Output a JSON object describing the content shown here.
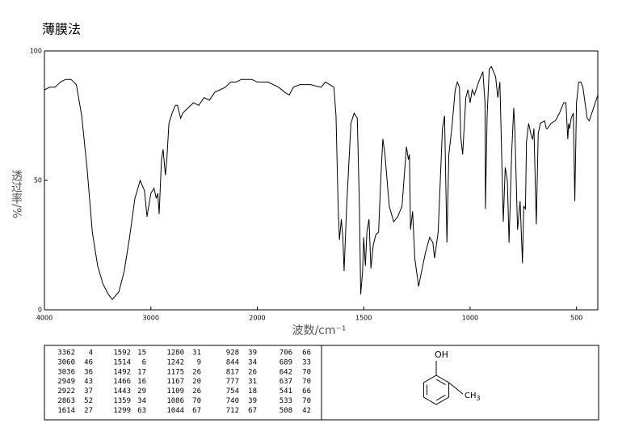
{
  "chart_data": {
    "type": "line",
    "title": "薄膜法",
    "x_label": "波数/cm⁻¹",
    "y_label": "透过率/%",
    "xlim": [
      4000,
      400
    ],
    "ylim": [
      0,
      100
    ],
    "xticks": [
      4000,
      3000,
      2000,
      1500,
      1000,
      500
    ],
    "yticks": [
      0,
      50,
      100
    ],
    "scale_change": {
      "at": 2000,
      "factor": 2
    },
    "color": "#000000",
    "x": [
      4000,
      3950,
      3900,
      3850,
      3800,
      3750,
      3700,
      3650,
      3600,
      3550,
      3500,
      3450,
      3400,
      3362,
      3300,
      3250,
      3200,
      3150,
      3100,
      3060,
      3036,
      3000,
      2970,
      2949,
      2935,
      2922,
      2900,
      2885,
      2863,
      2850,
      2830,
      2800,
      2770,
      2750,
      2720,
      2700,
      2650,
      2600,
      2550,
      2500,
      2450,
      2400,
      2350,
      2300,
      2250,
      2200,
      2150,
      2100,
      2050,
      2000,
      1950,
      1900,
      1870,
      1850,
      1830,
      1800,
      1750,
      1700,
      1680,
      1660,
      1640,
      1630,
      1620,
      1614,
      1605,
      1598,
      1592,
      1580,
      1560,
      1545,
      1530,
      1520,
      1514,
      1505,
      1500,
      1492,
      1485,
      1475,
      1466,
      1455,
      1443,
      1430,
      1420,
      1410,
      1400,
      1380,
      1359,
      1340,
      1320,
      1299,
      1290,
      1285,
      1280,
      1270,
      1260,
      1242,
      1230,
      1210,
      1190,
      1175,
      1167,
      1150,
      1130,
      1120,
      1109,
      1100,
      1086,
      1070,
      1060,
      1050,
      1044,
      1035,
      1020,
      1010,
      1000,
      990,
      980,
      960,
      940,
      930,
      928,
      920,
      910,
      900,
      880,
      870,
      860,
      844,
      835,
      825,
      817,
      805,
      795,
      790,
      777,
      765,
      754,
      748,
      740,
      735,
      725,
      712,
      706,
      700,
      689,
      680,
      670,
      650,
      642,
      637,
      620,
      600,
      580,
      560,
      550,
      541,
      537,
      533,
      525,
      515,
      508,
      500,
      490,
      480,
      470,
      460,
      450,
      440,
      420,
      400
    ],
    "values": [
      85,
      86,
      86,
      88,
      89,
      89,
      87,
      75,
      55,
      30,
      17,
      10,
      6,
      4,
      7,
      15,
      28,
      43,
      50,
      46,
      36,
      45,
      47,
      43,
      45,
      37,
      58,
      62,
      52,
      58,
      72,
      76,
      79,
      79,
      74,
      76,
      78,
      80,
      79,
      82,
      81,
      84,
      85,
      86,
      88,
      88,
      89,
      89,
      89,
      88,
      88,
      86,
      84,
      83,
      86,
      87,
      87,
      86,
      88,
      87,
      86,
      75,
      40,
      27,
      35,
      28,
      15,
      40,
      72,
      76,
      74,
      40,
      6,
      15,
      28,
      17,
      30,
      35,
      16,
      25,
      29,
      30,
      50,
      66,
      60,
      40,
      34,
      36,
      40,
      63,
      58,
      60,
      31,
      38,
      20,
      9,
      14,
      22,
      28,
      26,
      20,
      30,
      70,
      75,
      26,
      60,
      70,
      85,
      88,
      86,
      67,
      60,
      82,
      85,
      80,
      85,
      83,
      88,
      92,
      80,
      39,
      75,
      93,
      94,
      90,
      82,
      88,
      34,
      55,
      50,
      26,
      60,
      78,
      70,
      31,
      42,
      18,
      40,
      39,
      65,
      72,
      67,
      66,
      70,
      33,
      68,
      72,
      73,
      70,
      70,
      72,
      73,
      76,
      80,
      80,
      66,
      72,
      70,
      74,
      76,
      42,
      80,
      88,
      88,
      86,
      80,
      74,
      73,
      78,
      83
    ]
  },
  "peak_table": {
    "columns": [
      [
        [
          "3362",
          "4"
        ],
        [
          "3060",
          "46"
        ],
        [
          "3036",
          "36"
        ],
        [
          "2949",
          "43"
        ],
        [
          "2922",
          "37"
        ],
        [
          "2863",
          "52"
        ],
        [
          "1614",
          "27"
        ]
      ],
      [
        [
          "1592",
          "15"
        ],
        [
          "1514",
          "6"
        ],
        [
          "1492",
          "17"
        ],
        [
          "1466",
          "16"
        ],
        [
          "1443",
          "29"
        ],
        [
          "1359",
          "34"
        ],
        [
          "1299",
          "63"
        ]
      ],
      [
        [
          "1280",
          "31"
        ],
        [
          "1242",
          "9"
        ],
        [
          "1175",
          "26"
        ],
        [
          "1167",
          "20"
        ],
        [
          "1109",
          "26"
        ],
        [
          "1086",
          "70"
        ],
        [
          "1044",
          "67"
        ]
      ],
      [
        [
          "928",
          "39"
        ],
        [
          "844",
          "34"
        ],
        [
          "817",
          "26"
        ],
        [
          "777",
          "31"
        ],
        [
          "754",
          "18"
        ],
        [
          "740",
          "39"
        ],
        [
          "712",
          "67"
        ]
      ],
      [
        [
          "706",
          "66"
        ],
        [
          "689",
          "33"
        ],
        [
          "642",
          "70"
        ],
        [
          "637",
          "70"
        ],
        [
          "541",
          "66"
        ],
        [
          "533",
          "70"
        ],
        [
          "508",
          "42"
        ]
      ]
    ]
  },
  "structure": {
    "top_group": "OH",
    "side_group": "CH",
    "side_subscript": "3"
  }
}
